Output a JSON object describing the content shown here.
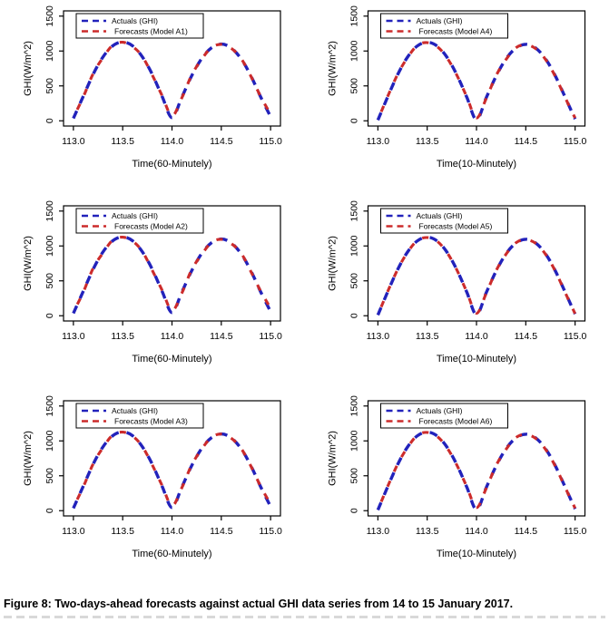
{
  "caption": "Figure 8: Two-days-ahead forecasts against actual GHI data series from 14 to 15 January 2017.",
  "colors": {
    "actuals": "#2222BB",
    "forecasts": "#CC2B2B",
    "axis": "#000000",
    "background": "#FFFFFF",
    "legend_border": "#000000"
  },
  "chart_data": [
    {
      "type": "line",
      "model": "A1",
      "title": "",
      "xlabel": "Time(60-Minutely)",
      "ylabel": "GHI(W/m^2)",
      "xticks": [
        "113.0",
        "113.5",
        "114.0",
        "114.5",
        "115.0"
      ],
      "yticks": [
        "0",
        "500",
        "1000",
        "1500"
      ],
      "xlim": [
        112.9,
        115.1
      ],
      "ylim": [
        -75,
        1575
      ],
      "legend_position": "top-left",
      "grid": false,
      "x": [
        113.0,
        113.1,
        113.2,
        113.3,
        113.4,
        113.5,
        113.6,
        113.7,
        113.8,
        113.9,
        114.0,
        114.1,
        114.2,
        114.3,
        114.4,
        114.5,
        114.6,
        114.7,
        114.8,
        114.9,
        115.0
      ],
      "series": [
        {
          "name": "Actuals (GHI)",
          "color": "#2222BB",
          "style": "dashed",
          "y": [
            35,
            350,
            665,
            915,
            1075,
            1130,
            1075,
            915,
            665,
            350,
            45,
            340,
            645,
            890,
            1045,
            1100,
            1045,
            890,
            645,
            340,
            60
          ]
        },
        {
          "name": "Forecasts (Model A1)",
          "color": "#CC2B2B",
          "style": "dashed",
          "y": [
            50,
            340,
            675,
            905,
            1085,
            1125,
            1065,
            920,
            655,
            360,
            70,
            330,
            655,
            880,
            1050,
            1095,
            1040,
            895,
            640,
            345,
            95
          ]
        }
      ]
    },
    {
      "type": "line",
      "model": "A4",
      "title": "",
      "xlabel": "Time(10-Minutely)",
      "ylabel": "GHI(W/m^2)",
      "xticks": [
        "113.0",
        "113.5",
        "114.0",
        "114.5",
        "115.0"
      ],
      "yticks": [
        "0",
        "500",
        "1000",
        "1500"
      ],
      "xlim": [
        112.9,
        115.1
      ],
      "ylim": [
        -75,
        1575
      ],
      "legend_position": "top-left",
      "grid": false,
      "x": [
        113.0,
        113.1,
        113.2,
        113.3,
        113.4,
        113.5,
        113.6,
        113.7,
        113.8,
        113.9,
        114.0,
        114.1,
        114.2,
        114.3,
        114.4,
        114.5,
        114.6,
        114.7,
        114.8,
        114.9,
        115.0
      ],
      "series": [
        {
          "name": "Actuals (GHI)",
          "color": "#2222BB",
          "style": "dashed",
          "y": [
            10,
            345,
            660,
            912,
            1072,
            1125,
            1072,
            912,
            660,
            345,
            15,
            335,
            642,
            888,
            1042,
            1095,
            1042,
            888,
            642,
            335,
            25
          ]
        },
        {
          "name": "Forecasts (Model A4)",
          "color": "#CC2B2B",
          "style": "dashed",
          "y": [
            15,
            350,
            665,
            905,
            1080,
            1120,
            1065,
            905,
            655,
            350,
            40,
            325,
            650,
            880,
            1048,
            1090,
            1035,
            880,
            635,
            330,
            40
          ]
        }
      ]
    },
    {
      "type": "line",
      "model": "A2",
      "title": "",
      "xlabel": "Time(60-Minutely)",
      "ylabel": "GHI(W/m^2)",
      "xticks": [
        "113.0",
        "113.5",
        "114.0",
        "114.5",
        "115.0"
      ],
      "yticks": [
        "0",
        "500",
        "1000",
        "1500"
      ],
      "xlim": [
        112.9,
        115.1
      ],
      "ylim": [
        -75,
        1575
      ],
      "legend_position": "top-left",
      "grid": false,
      "x": [
        113.0,
        113.1,
        113.2,
        113.3,
        113.4,
        113.5,
        113.6,
        113.7,
        113.8,
        113.9,
        114.0,
        114.1,
        114.2,
        114.3,
        114.4,
        114.5,
        114.6,
        114.7,
        114.8,
        114.9,
        115.0
      ],
      "series": [
        {
          "name": "Actuals (GHI)",
          "color": "#2222BB",
          "style": "dashed",
          "y": [
            35,
            350,
            665,
            915,
            1075,
            1130,
            1075,
            915,
            665,
            350,
            45,
            340,
            645,
            890,
            1045,
            1100,
            1045,
            890,
            645,
            340,
            60
          ]
        },
        {
          "name": "Forecasts (Model A2)",
          "color": "#CC2B2B",
          "style": "dashed",
          "y": [
            55,
            335,
            680,
            900,
            1085,
            1125,
            1070,
            920,
            650,
            365,
            75,
            325,
            660,
            875,
            1050,
            1095,
            1035,
            900,
            635,
            350,
            110
          ]
        }
      ]
    },
    {
      "type": "line",
      "model": "A5",
      "title": "",
      "xlabel": "Time(10-Minutely)",
      "ylabel": "GHI(W/m^2)",
      "xticks": [
        "113.0",
        "113.5",
        "114.0",
        "114.5",
        "115.0"
      ],
      "yticks": [
        "0",
        "500",
        "1000",
        "1500"
      ],
      "xlim": [
        112.9,
        115.1
      ],
      "ylim": [
        -75,
        1575
      ],
      "legend_position": "top-left",
      "grid": false,
      "x": [
        113.0,
        113.1,
        113.2,
        113.3,
        113.4,
        113.5,
        113.6,
        113.7,
        113.8,
        113.9,
        114.0,
        114.1,
        114.2,
        114.3,
        114.4,
        114.5,
        114.6,
        114.7,
        114.8,
        114.9,
        115.0
      ],
      "series": [
        {
          "name": "Actuals (GHI)",
          "color": "#2222BB",
          "style": "dashed",
          "y": [
            10,
            345,
            660,
            912,
            1072,
            1125,
            1072,
            912,
            660,
            345,
            15,
            335,
            642,
            888,
            1042,
            1095,
            1042,
            888,
            642,
            335,
            25
          ]
        },
        {
          "name": "Forecasts (Model A5)",
          "color": "#CC2B2B",
          "style": "dashed",
          "y": [
            12,
            348,
            662,
            908,
            1078,
            1120,
            1068,
            908,
            658,
            348,
            35,
            328,
            648,
            882,
            1046,
            1090,
            1038,
            882,
            638,
            330,
            30
          ]
        }
      ]
    },
    {
      "type": "line",
      "model": "A3",
      "title": "",
      "xlabel": "Time(60-Minutely)",
      "ylabel": "GHI(W/m^2)",
      "xticks": [
        "113.0",
        "113.5",
        "114.0",
        "114.5",
        "115.0"
      ],
      "yticks": [
        "0",
        "500",
        "1000",
        "1500"
      ],
      "xlim": [
        112.9,
        115.1
      ],
      "ylim": [
        -75,
        1575
      ],
      "legend_position": "top-left",
      "grid": false,
      "x": [
        113.0,
        113.1,
        113.2,
        113.3,
        113.4,
        113.5,
        113.6,
        113.7,
        113.8,
        113.9,
        114.0,
        114.1,
        114.2,
        114.3,
        114.4,
        114.5,
        114.6,
        114.7,
        114.8,
        114.9,
        115.0
      ],
      "series": [
        {
          "name": "Actuals (GHI)",
          "color": "#2222BB",
          "style": "dashed",
          "y": [
            35,
            350,
            665,
            915,
            1075,
            1130,
            1075,
            915,
            665,
            350,
            45,
            340,
            645,
            890,
            1045,
            1100,
            1045,
            890,
            645,
            340,
            60
          ]
        },
        {
          "name": "Forecasts (Model A3)",
          "color": "#CC2B2B",
          "style": "dashed",
          "y": [
            50,
            340,
            670,
            905,
            1085,
            1125,
            1070,
            918,
            655,
            360,
            70,
            330,
            655,
            880,
            1050,
            1098,
            1040,
            895,
            640,
            345,
            95
          ]
        }
      ]
    },
    {
      "type": "line",
      "model": "A6",
      "title": "",
      "xlabel": "Time(10-Minutely)",
      "ylabel": "GHI(W/m^2)",
      "xticks": [
        "113.0",
        "113.5",
        "114.0",
        "114.5",
        "115.0"
      ],
      "yticks": [
        "0",
        "500",
        "1000",
        "1500"
      ],
      "xlim": [
        112.9,
        115.1
      ],
      "ylim": [
        -75,
        1575
      ],
      "legend_position": "top-left",
      "grid": false,
      "x": [
        113.0,
        113.1,
        113.2,
        113.3,
        113.4,
        113.5,
        113.6,
        113.7,
        113.8,
        113.9,
        114.0,
        114.1,
        114.2,
        114.3,
        114.4,
        114.5,
        114.6,
        114.7,
        114.8,
        114.9,
        115.0
      ],
      "series": [
        {
          "name": "Actuals (GHI)",
          "color": "#2222BB",
          "style": "dashed",
          "y": [
            10,
            345,
            660,
            912,
            1072,
            1125,
            1072,
            912,
            660,
            345,
            15,
            335,
            642,
            888,
            1042,
            1095,
            1042,
            888,
            642,
            335,
            25
          ]
        },
        {
          "name": "Forecasts (Model A6)",
          "color": "#CC2B2B",
          "style": "dashed",
          "y": [
            15,
            348,
            665,
            905,
            1080,
            1122,
            1066,
            905,
            655,
            350,
            45,
            325,
            650,
            880,
            1048,
            1092,
            1036,
            880,
            636,
            330,
            35
          ]
        }
      ]
    }
  ]
}
